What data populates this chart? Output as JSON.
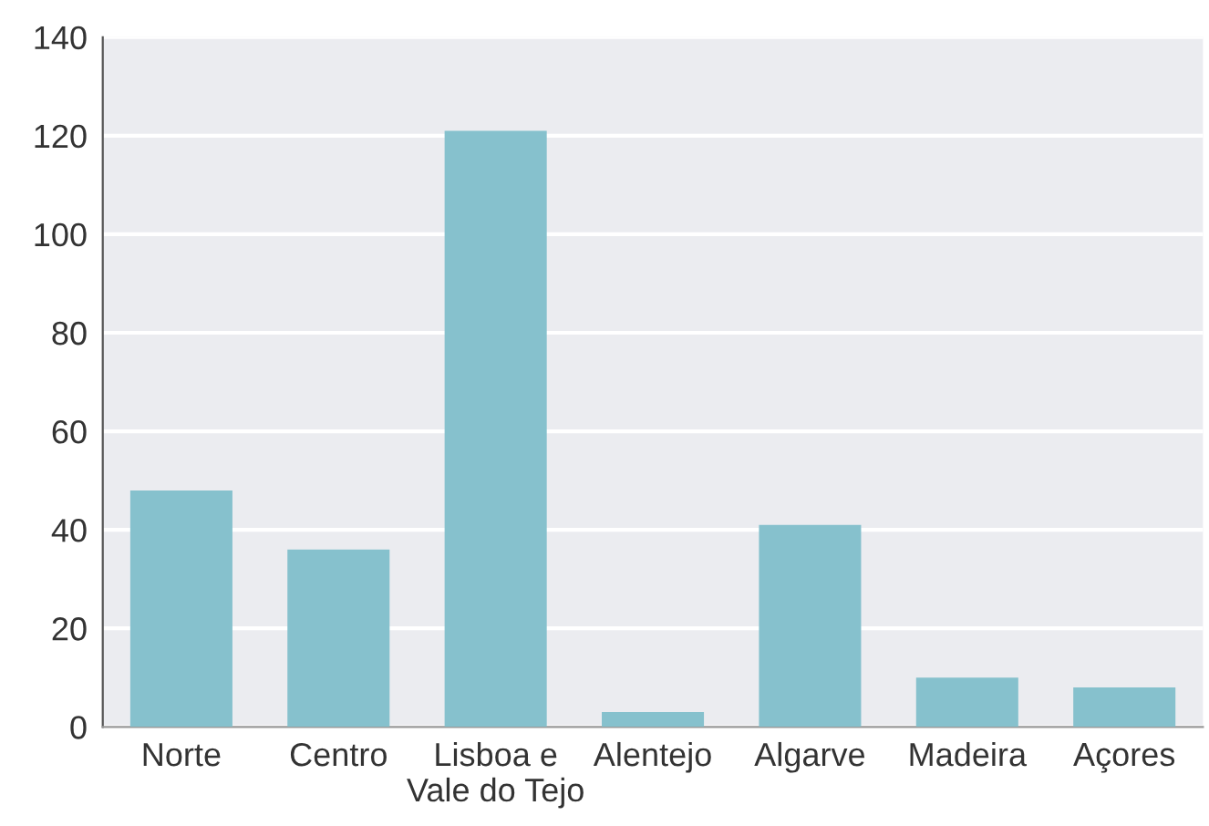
{
  "chart_data": {
    "type": "bar",
    "categories": [
      "Norte",
      "Centro",
      "Lisboa e\nVale do Tejo",
      "Alentejo",
      "Algarve",
      "Madeira",
      "Açores"
    ],
    "values": [
      48,
      36,
      121,
      3,
      41,
      10,
      8
    ],
    "color": "#86c1cd",
    "ylim": [
      0,
      140
    ],
    "yticks": [
      0,
      20,
      40,
      60,
      80,
      100,
      120,
      140
    ],
    "grid": "y"
  }
}
